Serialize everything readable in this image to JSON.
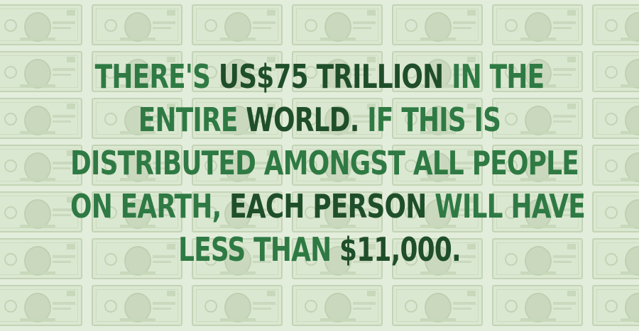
{
  "background": {
    "description_icon": "dollar-bill-icon",
    "colors": {
      "page": "#e3eddb",
      "bill_fill": "#dbe8d1",
      "bill_border": "#c3d4b6"
    }
  },
  "headline": {
    "colors": {
      "text": "#2f7a44",
      "emphasis": "#1f4f2a"
    },
    "lines": [
      [
        {
          "text": "There's ",
          "emphasis": false
        },
        {
          "text": "US$75 trillion",
          "emphasis": true
        },
        {
          "text": " in the",
          "emphasis": false
        }
      ],
      [
        {
          "text": "entire ",
          "emphasis": false
        },
        {
          "text": "world.",
          "emphasis": true
        },
        {
          "text": " If this is",
          "emphasis": false
        }
      ],
      [
        {
          "text": "distributed amongst all people",
          "emphasis": false
        }
      ],
      [
        {
          "text": "on earth, ",
          "emphasis": false
        },
        {
          "text": "each person",
          "emphasis": true
        },
        {
          "text": " will have",
          "emphasis": false
        }
      ],
      [
        {
          "text": "less than ",
          "emphasis": false
        },
        {
          "text": "$11,000.",
          "emphasis": true
        }
      ]
    ]
  }
}
